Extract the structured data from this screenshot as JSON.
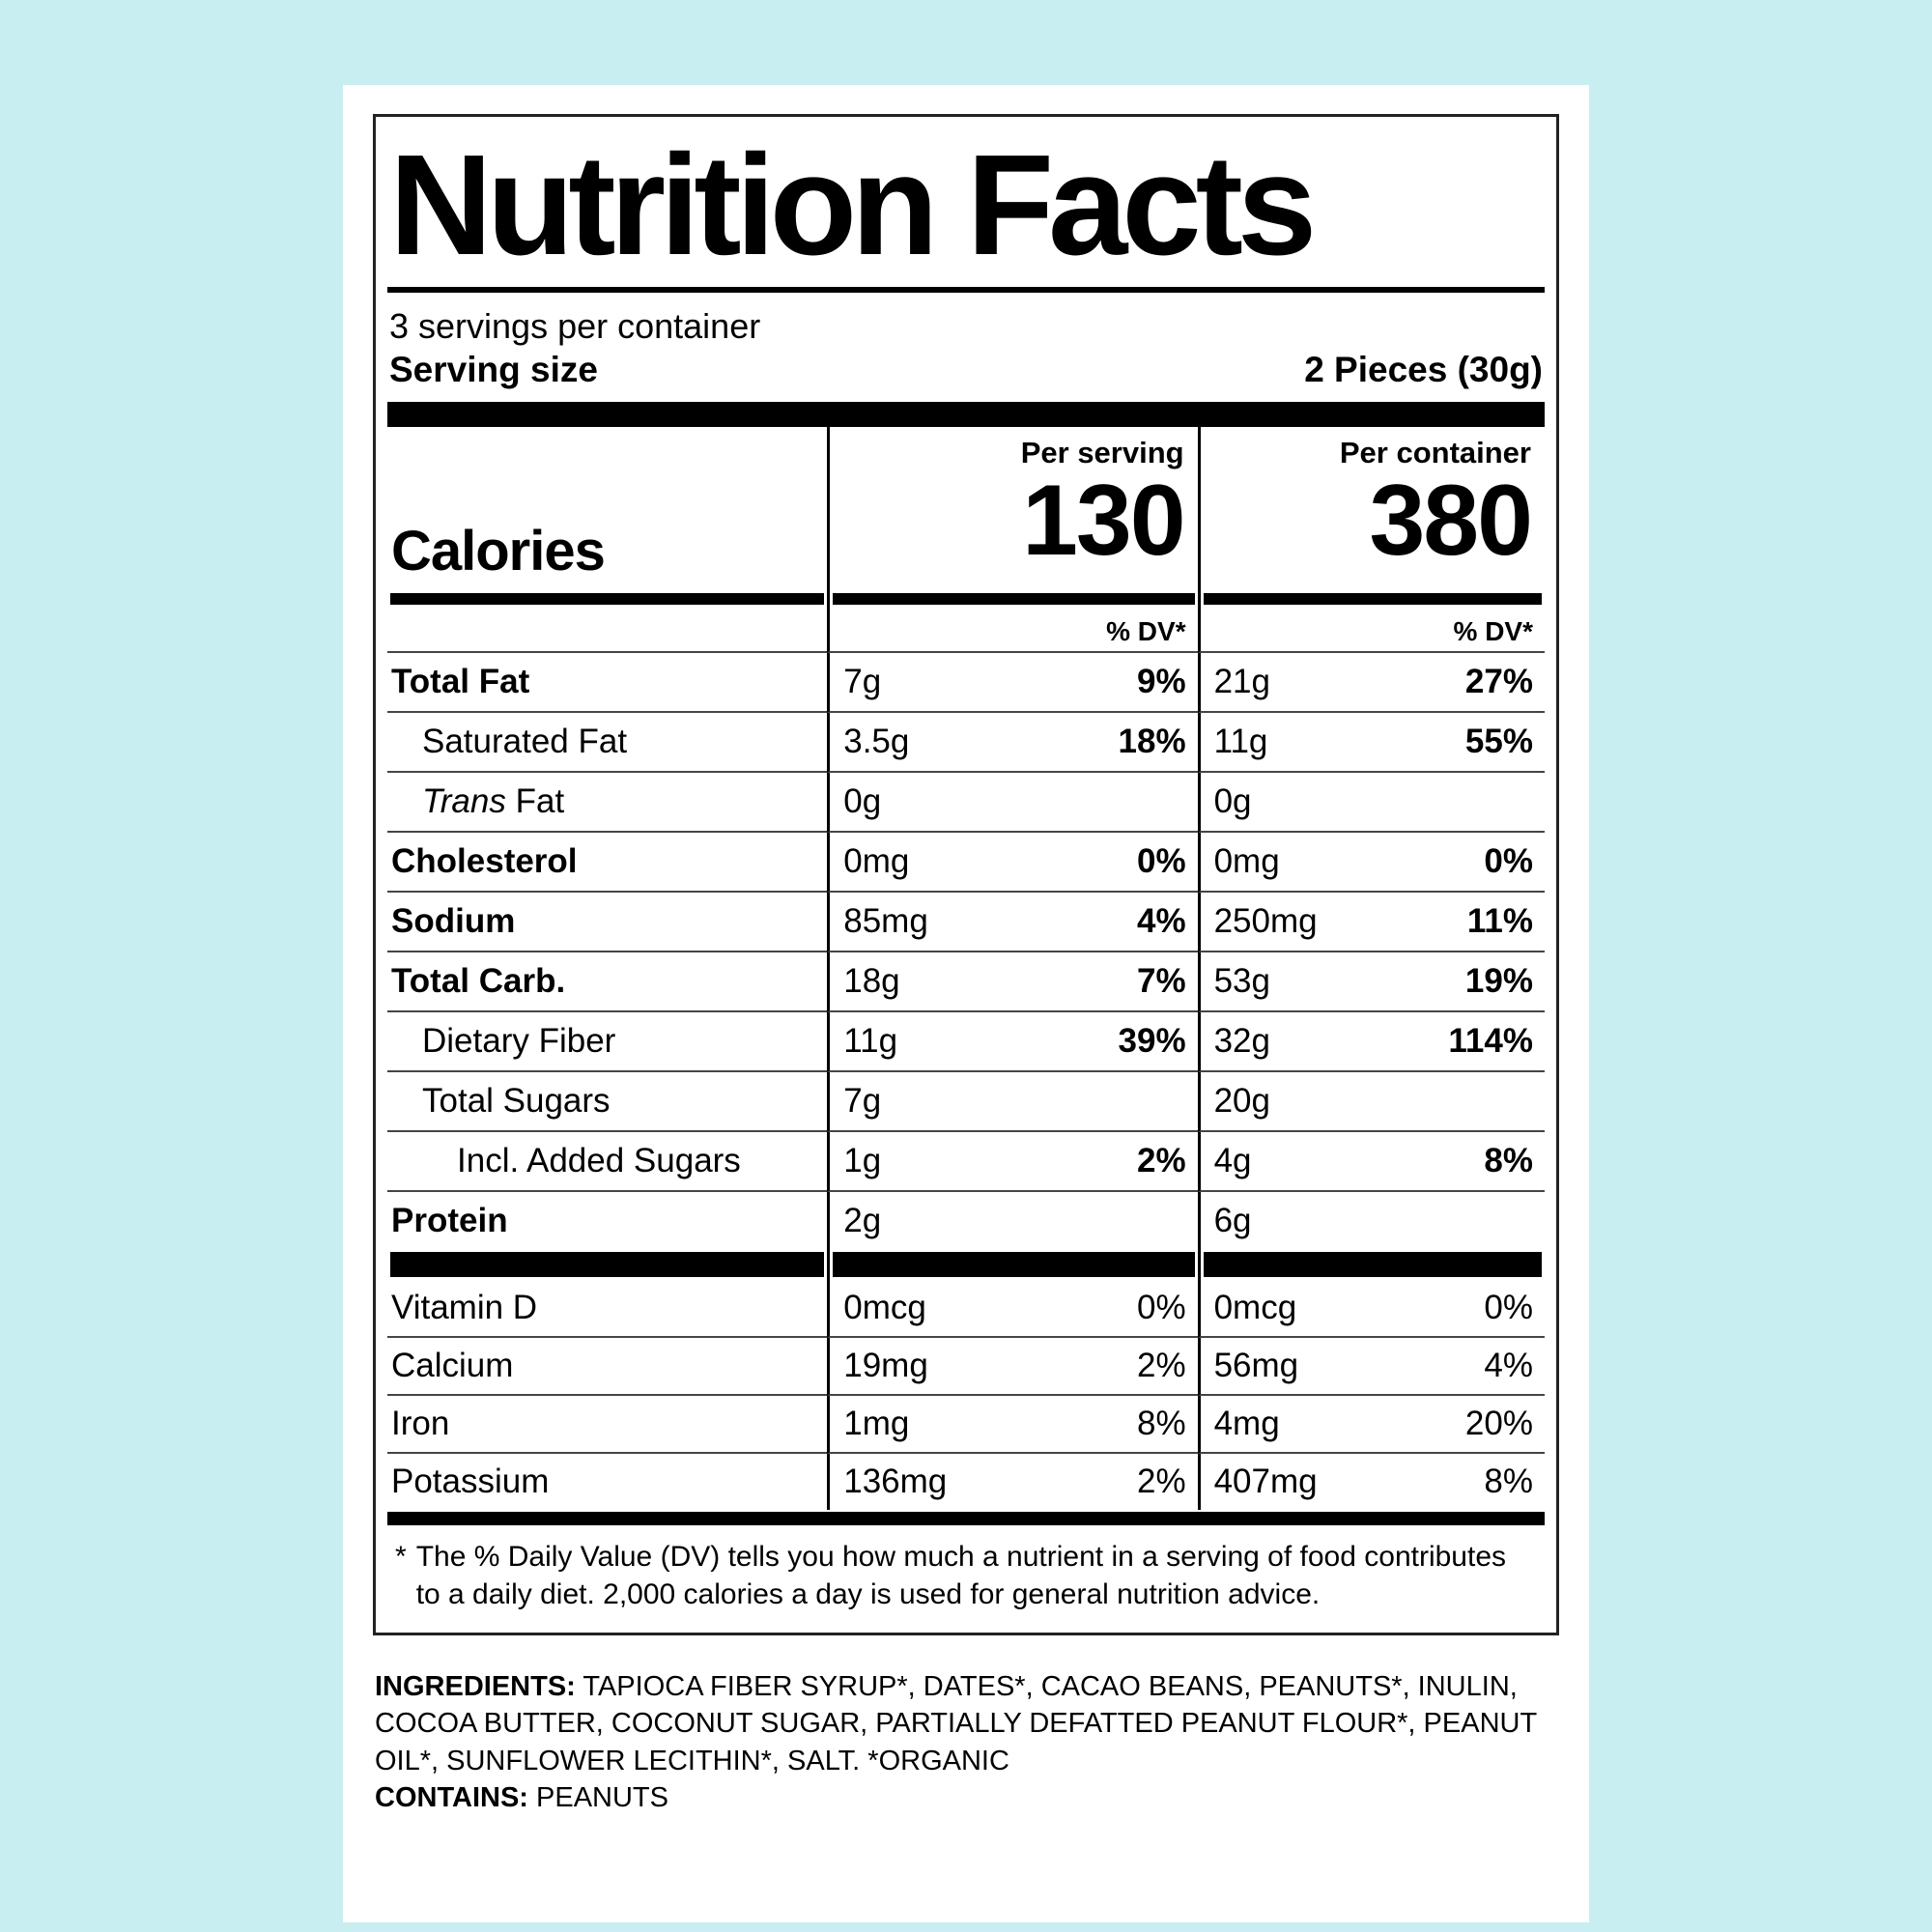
{
  "colors": {
    "page_background": "#c9eef2",
    "label_background": "#ffffff",
    "text": "#000000"
  },
  "label": {
    "title": "Nutrition Facts",
    "servings_per_container": "3 servings per container",
    "serving_size": {
      "label": "Serving size",
      "value": "2 Pieces (30g)"
    },
    "calories": {
      "label": "Calories",
      "columns": [
        {
          "header": "Per serving",
          "value": "130",
          "dv_header": "% DV*"
        },
        {
          "header": "Per container",
          "value": "380",
          "dv_header": "% DV*"
        }
      ]
    },
    "nutrients": [
      {
        "name": "Total Fat",
        "serving_amount": "7g",
        "serving_dv": "9%",
        "container_amount": "21g",
        "container_dv": "27%"
      },
      {
        "name": "Saturated Fat",
        "serving_amount": "3.5g",
        "serving_dv": "18%",
        "container_amount": "11g",
        "container_dv": "55%"
      },
      {
        "name_italic": "Trans",
        "name_rest": " Fat",
        "serving_amount": "0g",
        "serving_dv": "",
        "container_amount": "0g",
        "container_dv": ""
      },
      {
        "name": "Cholesterol",
        "serving_amount": "0mg",
        "serving_dv": "0%",
        "container_amount": "0mg",
        "container_dv": "0%"
      },
      {
        "name": "Sodium",
        "serving_amount": "85mg",
        "serving_dv": "4%",
        "container_amount": "250mg",
        "container_dv": "11%"
      },
      {
        "name": "Total Carb.",
        "serving_amount": "18g",
        "serving_dv": "7%",
        "container_amount": "53g",
        "container_dv": "19%"
      },
      {
        "name": "Dietary Fiber",
        "serving_amount": "11g",
        "serving_dv": "39%",
        "container_amount": "32g",
        "container_dv": "114%"
      },
      {
        "name": "Total Sugars",
        "serving_amount": "7g",
        "serving_dv": "",
        "container_amount": "20g",
        "container_dv": ""
      },
      {
        "name": "Incl. Added Sugars",
        "serving_amount": "1g",
        "serving_dv": "2%",
        "container_amount": "4g",
        "container_dv": "8%"
      },
      {
        "name": "Protein",
        "serving_amount": "2g",
        "serving_dv": "",
        "container_amount": "6g",
        "container_dv": ""
      }
    ],
    "micronutrients": [
      {
        "name": "Vitamin D",
        "serving_amount": "0mcg",
        "serving_dv": "0%",
        "container_amount": "0mcg",
        "container_dv": "0%"
      },
      {
        "name": "Calcium",
        "serving_amount": "19mg",
        "serving_dv": "2%",
        "container_amount": "56mg",
        "container_dv": "4%"
      },
      {
        "name": "Iron",
        "serving_amount": "1mg",
        "serving_dv": "8%",
        "container_amount": "4mg",
        "container_dv": "20%"
      },
      {
        "name": "Potassium",
        "serving_amount": "136mg",
        "serving_dv": "2%",
        "container_amount": "407mg",
        "container_dv": "8%"
      }
    ],
    "footnote": {
      "marker": "*",
      "text": "The % Daily Value (DV) tells you how much a nutrient in a serving of food contributes to a daily diet. 2,000 calories a day is used for general nutrition advice."
    }
  },
  "ingredients": {
    "label": "INGREDIENTS:",
    "text": "TAPIOCA FIBER SYRUP*, DATES*, CACAO BEANS, PEANUTS*, INULIN, COCOA BUTTER, COCONUT SUGAR, PARTIALLY DEFATTED PEANUT FLOUR*, PEANUT OIL*, SUNFLOWER LECITHIN*, SALT. *ORGANIC"
  },
  "contains": {
    "label": "CONTAINS:",
    "text": "PEANUTS"
  }
}
